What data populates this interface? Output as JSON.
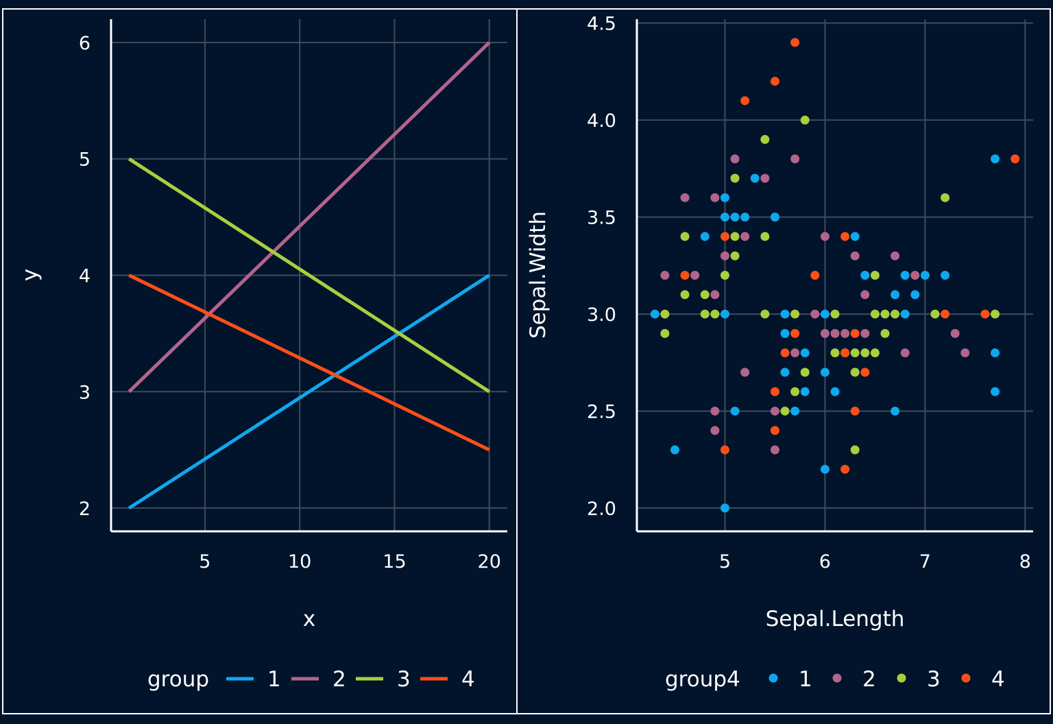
{
  "colors": {
    "background": "#01142b",
    "panel_border": "#ffffff",
    "grid": "#3e4b5b",
    "axis": "#ffffff",
    "text": "#ffffff",
    "series": [
      "#0fa8ee",
      "#b3648b",
      "#a9cf3e",
      "#fd4f19"
    ]
  },
  "chart_data": [
    {
      "type": "line",
      "title": "",
      "xlabel": "x",
      "ylabel": "y",
      "xlim": [
        0.05,
        20.95
      ],
      "ylim": [
        1.8,
        6.2
      ],
      "xticks": [
        5,
        10,
        15,
        20
      ],
      "yticks": [
        2,
        3,
        4,
        5,
        6
      ],
      "grid": true,
      "legend": {
        "title": "group",
        "position": "bottom",
        "labels": [
          "1",
          "2",
          "3",
          "4"
        ]
      },
      "series": [
        {
          "name": "1",
          "x": [
            1,
            20
          ],
          "y": [
            2,
            4
          ]
        },
        {
          "name": "2",
          "x": [
            1,
            20
          ],
          "y": [
            3,
            6
          ]
        },
        {
          "name": "3",
          "x": [
            1,
            20
          ],
          "y": [
            5,
            3
          ]
        },
        {
          "name": "4",
          "x": [
            1,
            20
          ],
          "y": [
            4,
            2.5
          ]
        }
      ]
    },
    {
      "type": "scatter",
      "title": "",
      "xlabel": "Sepal.Length",
      "ylabel": "Sepal.Width",
      "xlim": [
        4.12,
        8.08
      ],
      "ylim": [
        1.88,
        4.52
      ],
      "xticks": [
        5,
        6,
        7,
        8
      ],
      "xtick_labels": [
        "5",
        "6",
        "7",
        "8"
      ],
      "yticks": [
        2.0,
        2.5,
        3.0,
        3.5,
        4.0,
        4.5
      ],
      "ytick_labels": [
        "2.0",
        "2.5",
        "3.0",
        "3.5",
        "4.0",
        "4.5"
      ],
      "grid": true,
      "legend": {
        "title": "group4",
        "position": "bottom",
        "labels": [
          "1",
          "2",
          "3",
          "4"
        ]
      },
      "series": [
        {
          "name": "1",
          "points": [
            [
              4.3,
              3.0
            ],
            [
              4.5,
              2.3
            ],
            [
              4.8,
              3.4
            ],
            [
              5.0,
              2.0
            ],
            [
              5.0,
              3.0
            ],
            [
              5.0,
              3.5
            ],
            [
              5.0,
              3.6
            ],
            [
              5.1,
              2.5
            ],
            [
              5.1,
              3.5
            ],
            [
              5.2,
              3.5
            ],
            [
              5.3,
              3.7
            ],
            [
              5.5,
              3.5
            ],
            [
              5.6,
              2.7
            ],
            [
              5.6,
              2.9
            ],
            [
              5.6,
              3.0
            ],
            [
              5.7,
              2.5
            ],
            [
              5.8,
              2.6
            ],
            [
              5.8,
              2.8
            ],
            [
              6.0,
              2.2
            ],
            [
              6.0,
              2.7
            ],
            [
              6.0,
              3.0
            ],
            [
              6.1,
              2.6
            ],
            [
              6.3,
              3.4
            ],
            [
              6.4,
              2.8
            ],
            [
              6.4,
              3.2
            ],
            [
              6.7,
              2.5
            ],
            [
              6.7,
              3.1
            ],
            [
              6.8,
              3.0
            ],
            [
              6.8,
              3.2
            ],
            [
              6.9,
              3.1
            ],
            [
              7.0,
              3.2
            ],
            [
              7.2,
              3.2
            ],
            [
              7.7,
              2.6
            ],
            [
              7.7,
              2.8
            ],
            [
              7.7,
              3.8
            ]
          ]
        },
        {
          "name": "2",
          "points": [
            [
              4.4,
              3.2
            ],
            [
              4.6,
              3.6
            ],
            [
              4.7,
              3.2
            ],
            [
              4.9,
              2.4
            ],
            [
              4.9,
              2.5
            ],
            [
              4.9,
              3.1
            ],
            [
              4.9,
              3.6
            ],
            [
              5.0,
              3.3
            ],
            [
              5.1,
              3.8
            ],
            [
              5.2,
              2.7
            ],
            [
              5.2,
              3.4
            ],
            [
              5.4,
              3.7
            ],
            [
              5.5,
              2.3
            ],
            [
              5.5,
              2.5
            ],
            [
              5.7,
              2.8
            ],
            [
              5.7,
              3.8
            ],
            [
              5.9,
              3.0
            ],
            [
              6.0,
              2.9
            ],
            [
              6.0,
              3.4
            ],
            [
              6.1,
              2.9
            ],
            [
              6.2,
              2.9
            ],
            [
              6.3,
              3.3
            ],
            [
              6.4,
              2.9
            ],
            [
              6.4,
              3.1
            ],
            [
              6.7,
              3.3
            ],
            [
              6.8,
              2.8
            ],
            [
              6.9,
              3.2
            ],
            [
              7.3,
              2.9
            ],
            [
              7.4,
              2.8
            ]
          ]
        },
        {
          "name": "3",
          "points": [
            [
              4.4,
              2.9
            ],
            [
              4.4,
              3.0
            ],
            [
              4.6,
              3.1
            ],
            [
              4.6,
              3.4
            ],
            [
              4.8,
              3.0
            ],
            [
              4.8,
              3.1
            ],
            [
              4.9,
              3.0
            ],
            [
              5.0,
              3.2
            ],
            [
              5.1,
              3.3
            ],
            [
              5.1,
              3.4
            ],
            [
              5.1,
              3.7
            ],
            [
              5.4,
              3.0
            ],
            [
              5.4,
              3.4
            ],
            [
              5.4,
              3.9
            ],
            [
              5.6,
              2.5
            ],
            [
              5.7,
              2.6
            ],
            [
              5.7,
              3.0
            ],
            [
              5.8,
              2.7
            ],
            [
              5.8,
              4.0
            ],
            [
              6.1,
              2.8
            ],
            [
              6.1,
              3.0
            ],
            [
              6.2,
              2.8
            ],
            [
              6.3,
              2.3
            ],
            [
              6.3,
              2.7
            ],
            [
              6.3,
              2.8
            ],
            [
              6.4,
              2.8
            ],
            [
              6.5,
              2.8
            ],
            [
              6.5,
              3.0
            ],
            [
              6.5,
              3.2
            ],
            [
              6.6,
              2.9
            ],
            [
              6.6,
              3.0
            ],
            [
              6.7,
              3.0
            ],
            [
              7.1,
              3.0
            ],
            [
              7.2,
              3.6
            ],
            [
              7.7,
              3.0
            ]
          ]
        },
        {
          "name": "4",
          "points": [
            [
              4.6,
              3.2
            ],
            [
              5.0,
              2.3
            ],
            [
              5.0,
              3.4
            ],
            [
              5.2,
              4.1
            ],
            [
              5.5,
              2.4
            ],
            [
              5.5,
              2.6
            ],
            [
              5.5,
              4.2
            ],
            [
              5.6,
              2.8
            ],
            [
              5.7,
              2.9
            ],
            [
              5.7,
              4.4
            ],
            [
              5.9,
              3.2
            ],
            [
              6.2,
              2.2
            ],
            [
              6.2,
              2.8
            ],
            [
              6.2,
              3.4
            ],
            [
              6.3,
              2.5
            ],
            [
              6.3,
              2.9
            ],
            [
              6.4,
              2.7
            ],
            [
              7.2,
              3.0
            ],
            [
              7.6,
              3.0
            ],
            [
              7.9,
              3.8
            ]
          ]
        }
      ]
    }
  ]
}
